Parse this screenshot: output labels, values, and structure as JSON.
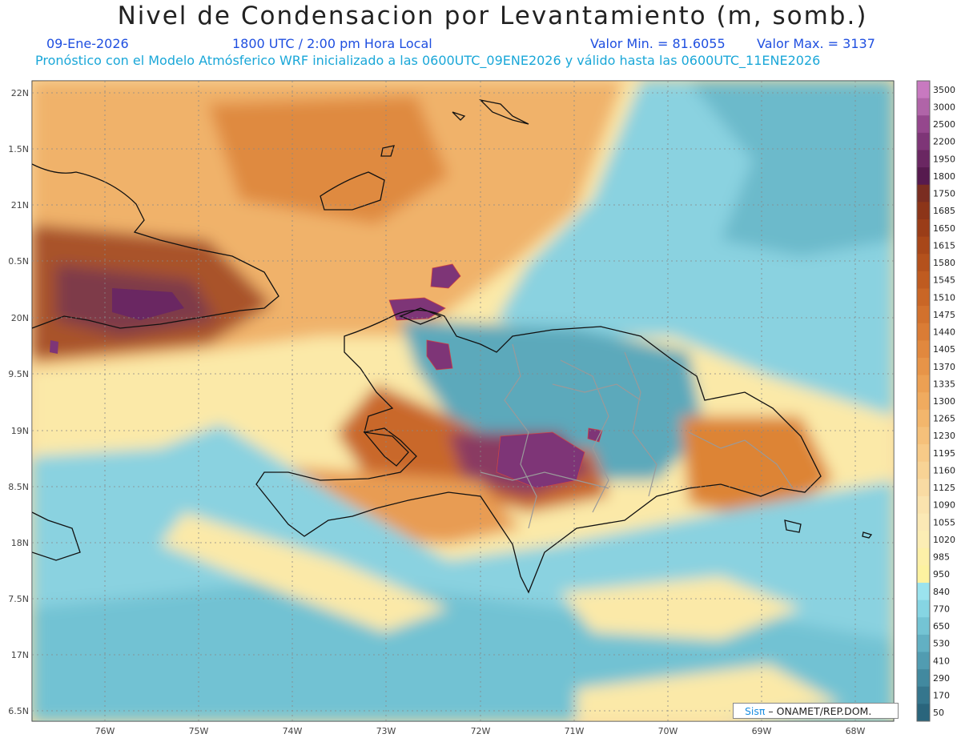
{
  "header": {
    "title": "Nivel de Condensacion por Levantamiento (m, somb.)",
    "date": "09-Ene-2026",
    "time": "1800 UTC / 2:00 pm Hora Local",
    "min": "Valor Min. = 81.6055",
    "max": "Valor Max. = 3137",
    "model_line": "Pronóstico con el Modelo Atmósferico WRF inicializado a las 0600UTC_09ENE2026 y válido hasta las  0600UTC_11ENE2026"
  },
  "lat_labels": [
    "22N",
    "1.5N",
    "21N",
    "0.5N",
    "20N",
    "9.5N",
    "19N",
    "8.5N",
    "18N",
    "7.5N",
    "17N",
    "6.5N"
  ],
  "lon_labels": [
    "76W",
    "75W",
    "74W",
    "73W",
    "72W",
    "71W",
    "70W",
    "69W",
    "68W"
  ],
  "colorbar": {
    "levels": [
      "3500",
      "3000",
      "2500",
      "2200",
      "1950",
      "1800",
      "1750",
      "1685",
      "1650",
      "1615",
      "1580",
      "1545",
      "1510",
      "1475",
      "1440",
      "1405",
      "1370",
      "1335",
      "1300",
      "1265",
      "1230",
      "1195",
      "1160",
      "1125",
      "1090",
      "1055",
      "1020",
      "985",
      "950",
      "840",
      "770",
      "650",
      "530",
      "410",
      "290",
      "170",
      "50"
    ],
    "colors": [
      "#c879c0",
      "#b064a8",
      "#95478d",
      "#7e3577",
      "#6a2762",
      "#561a4e",
      "#7a2d21",
      "#8c3519",
      "#9a3d18",
      "#a84719",
      "#b4511c",
      "#bf5b20",
      "#c96626",
      "#d2712d",
      "#da7c35",
      "#e1883e",
      "#e79448",
      "#eca053",
      "#f0ab5f",
      "#f3b66c",
      "#f5c07a",
      "#f7ca88",
      "#f8d395",
      "#f9dba3",
      "#fae3ae",
      "#fbe9b5",
      "#fcedb4",
      "#fdf0a8",
      "#fdf2a0",
      "#9be3ee",
      "#86d5e3",
      "#74c4d4",
      "#62b0c3",
      "#519cb1",
      "#42899f",
      "#35768d",
      "#2a657c"
    ]
  },
  "credit": {
    "sis": "Sisπ",
    "rest": " – ONAMET/REP.DOM."
  }
}
